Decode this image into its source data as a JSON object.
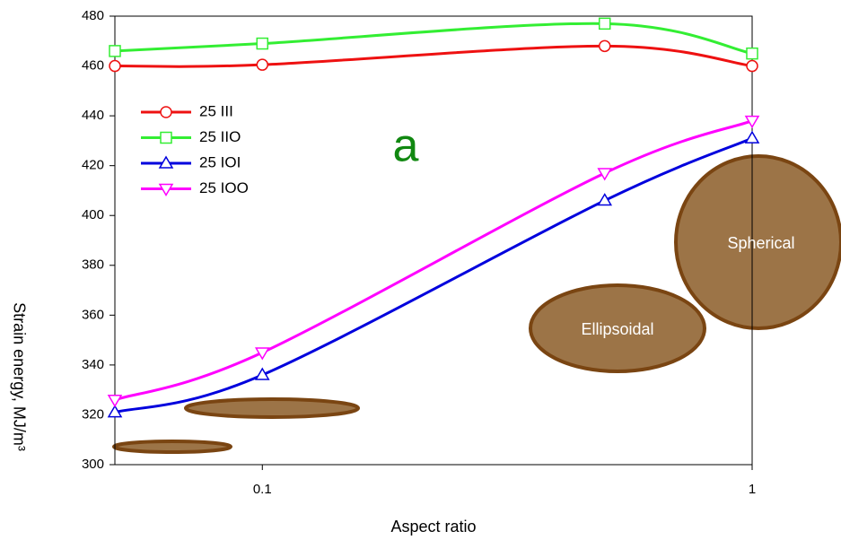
{
  "chart_data": {
    "type": "line",
    "x_label": "Aspect ratio",
    "y_label": "Strain energy, MJ/m³",
    "x": [
      0.05,
      0.1,
      0.5,
      1
    ],
    "xscale": "log",
    "xlim": [
      0.05,
      1
    ],
    "xticks": [
      0.1,
      1
    ],
    "ylim": [
      300,
      480
    ],
    "yticks": [
      300,
      320,
      340,
      360,
      380,
      400,
      420,
      440,
      460,
      480
    ],
    "legend": "upper left",
    "series": [
      {
        "name": "25 III",
        "color": "#ee1111",
        "marker": "circle",
        "values": [
          460,
          460.5,
          468,
          460
        ]
      },
      {
        "name": "25 IIO",
        "color": "#33ee33",
        "marker": "square",
        "values": [
          466,
          469,
          477,
          465
        ]
      },
      {
        "name": "25 IOI",
        "color": "#0000dd",
        "marker": "triangle-up",
        "values": [
          321,
          336,
          406,
          431
        ]
      },
      {
        "name": "25 IOO",
        "color": "#ff00ff",
        "marker": "triangle-down",
        "values": [
          326,
          345,
          417,
          438
        ]
      }
    ],
    "annotations": [
      "a",
      "Ellipsoidal",
      "Spherical"
    ]
  }
}
